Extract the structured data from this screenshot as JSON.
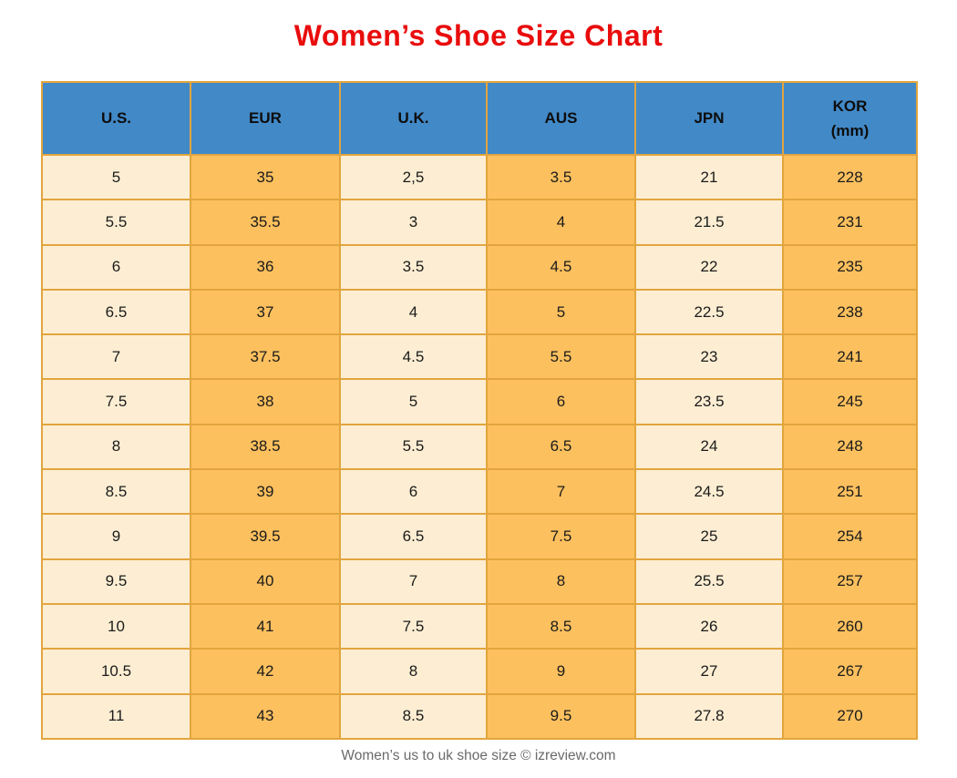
{
  "page": {
    "title": "Women’s Shoe Size Chart",
    "footer": "Women’s us to uk shoe size © izreview.com"
  },
  "colors": {
    "title_red": "#e90d0d",
    "header_blue": "#4289c7",
    "cell_light_cream": "#fdeed3",
    "cell_orange": "#fcc05e",
    "border_gold": "#e2a53e",
    "footer_gray": "#6a6a6a"
  },
  "chart_data": {
    "type": "table",
    "title": "Women’s Shoe Size Chart",
    "columns": [
      "U.S.",
      "EUR",
      "U.K.",
      "AUS",
      "JPN",
      "KOR\n(mm)"
    ],
    "rows": [
      [
        "5",
        "35",
        "2,5",
        "3.5",
        "21",
        "228"
      ],
      [
        "5.5",
        "35.5",
        "3",
        "4",
        "21.5",
        "231"
      ],
      [
        "6",
        "36",
        "3.5",
        "4.5",
        "22",
        "235"
      ],
      [
        "6.5",
        "37",
        "4",
        "5",
        "22.5",
        "238"
      ],
      [
        "7",
        "37.5",
        "4.5",
        "5.5",
        "23",
        "241"
      ],
      [
        "7.5",
        "38",
        "5",
        "6",
        "23.5",
        "245"
      ],
      [
        "8",
        "38.5",
        "5.5",
        "6.5",
        "24",
        "248"
      ],
      [
        "8.5",
        "39",
        "6",
        "7",
        "24.5",
        "251"
      ],
      [
        "9",
        "39.5",
        "6.5",
        "7.5",
        "25",
        "254"
      ],
      [
        "9.5",
        "40",
        "7",
        "8",
        "25.5",
        "257"
      ],
      [
        "10",
        "41",
        "7.5",
        "8.5",
        "26",
        "260"
      ],
      [
        "10.5",
        "42",
        "8",
        "9",
        "27",
        "267"
      ],
      [
        "11",
        "43",
        "8.5",
        "9.5",
        "27.8",
        "270"
      ]
    ]
  }
}
